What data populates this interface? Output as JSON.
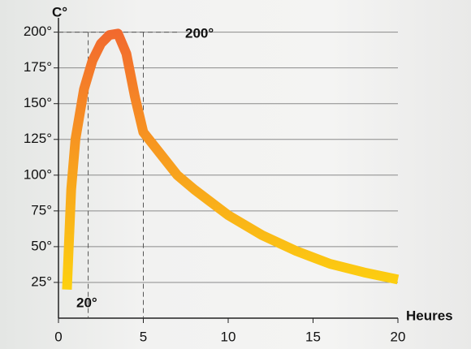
{
  "chart_data": {
    "type": "line",
    "y_label": "C°",
    "x_label": "Heures",
    "x": [
      0.5,
      0.75,
      1,
      1.5,
      2,
      2.5,
      3,
      3.5,
      4,
      4.5,
      5,
      6,
      7,
      8,
      10,
      12,
      14,
      16,
      18,
      20
    ],
    "series": [
      {
        "values": [
          20,
          90,
          125,
          160,
          180,
          192,
          198,
          199,
          185,
          155,
          130,
          115,
          100,
          90,
          72,
          58,
          47,
          38,
          32,
          27
        ],
        "gradient": [
          "#f26a2e",
          "#fdd20f"
        ]
      }
    ],
    "xlim": [
      0,
      20
    ],
    "xticks": [
      0,
      5,
      10,
      15,
      20
    ],
    "ylim": [
      0,
      210
    ],
    "yticks": [
      {
        "value": 25,
        "label": "25°"
      },
      {
        "value": 50,
        "label": "50°"
      },
      {
        "value": 75,
        "label": "75°"
      },
      {
        "value": 100,
        "label": "100°"
      },
      {
        "value": 125,
        "label": "125°"
      },
      {
        "value": 150,
        "label": "150°"
      },
      {
        "value": 175,
        "label": "175°"
      },
      {
        "value": 200,
        "label": "200°"
      }
    ],
    "grid": true,
    "reference_x": [
      1.75,
      5
    ],
    "reference_y": 200,
    "annotations": [
      {
        "text": "200°",
        "color": "#ee6a2c"
      },
      {
        "text": "20°",
        "color": "#fcc21a"
      }
    ]
  }
}
